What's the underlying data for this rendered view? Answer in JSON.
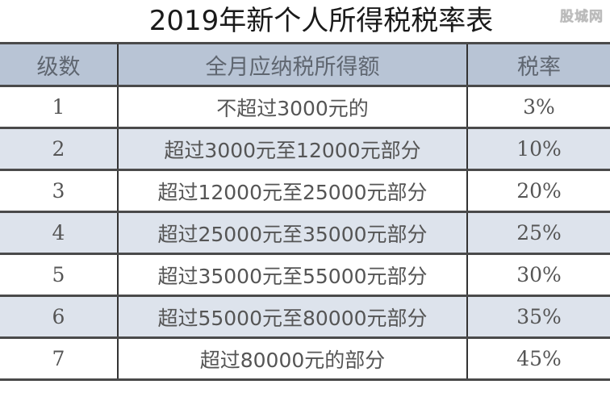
{
  "title": "2019年新个人所得税税率表",
  "watermark": "股城网",
  "table": {
    "headers": [
      "级数",
      "全月应纳税所得额",
      "税率"
    ],
    "rows": [
      [
        "1",
        "不超过3000元的",
        "3%"
      ],
      [
        "2",
        "超过3000元至12000元部分",
        "10%"
      ],
      [
        "3",
        "超过12000元至25000元部分",
        "20%"
      ],
      [
        "4",
        "超过25000元至35000元部分",
        "25%"
      ],
      [
        "5",
        "超过35000元至55000元部分",
        "30%"
      ],
      [
        "6",
        "超过55000元至80000元部分",
        "35%"
      ],
      [
        "7",
        "超过80000元的部分",
        "45%"
      ]
    ]
  },
  "colors": {
    "header_bg": "#b8c4d5",
    "alt_row_bg": "#dde3ec",
    "text": "#555555"
  }
}
